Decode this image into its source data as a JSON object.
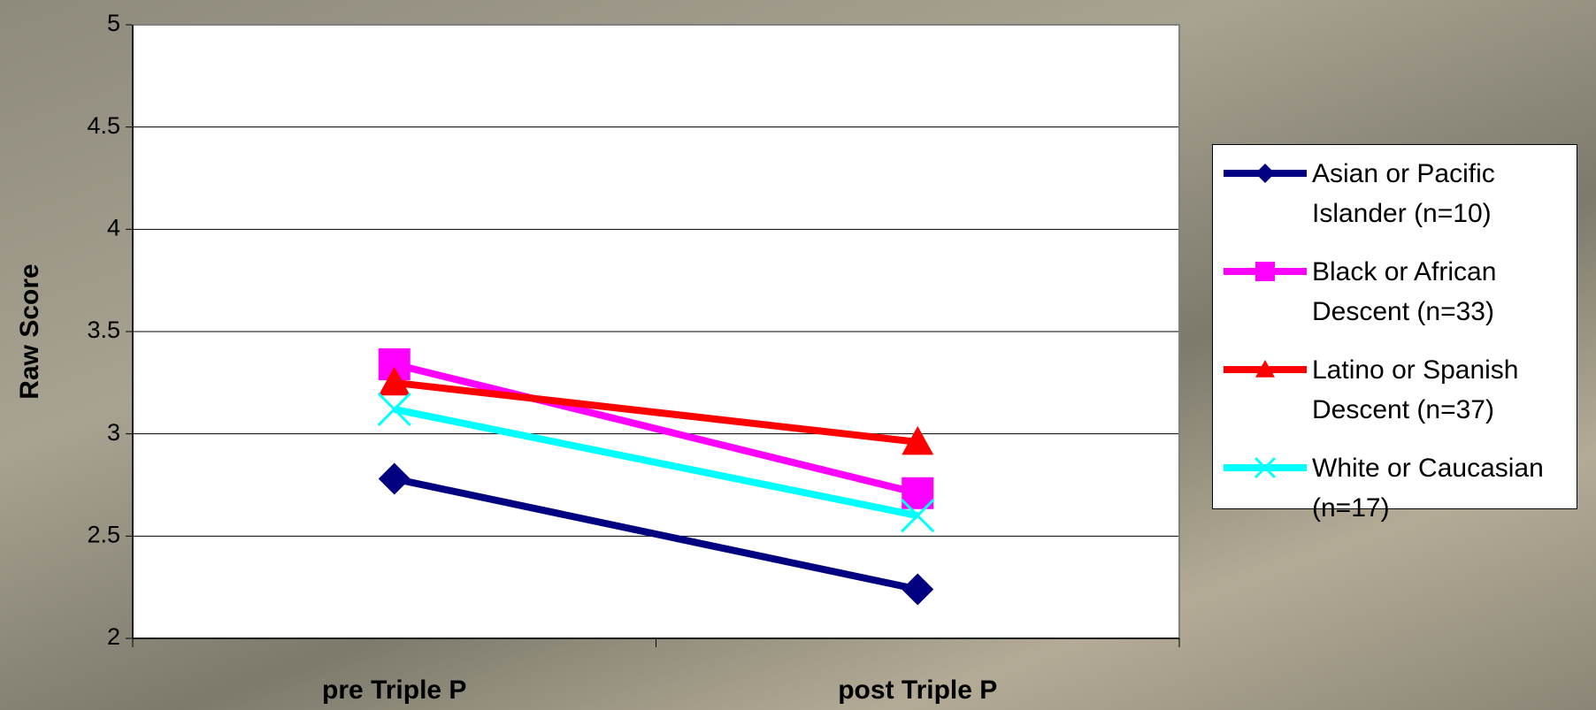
{
  "chart_data": {
    "type": "line",
    "y_label": "Raw Score",
    "categories": [
      "pre Triple P",
      "post Triple P"
    ],
    "series": [
      {
        "name": "Asian or Pacific Islander (n=10)",
        "color": "#000080",
        "marker": "diamond",
        "values": [
          2.78,
          2.24
        ]
      },
      {
        "name": "Black or African Descent (n=33)",
        "color": "#ff00ff",
        "marker": "square",
        "values": [
          3.34,
          2.71
        ]
      },
      {
        "name": "Latino or Spanish Descent (n=37)",
        "color": "#ff0000",
        "marker": "triangle",
        "values": [
          3.25,
          2.96
        ]
      },
      {
        "name": "White or Caucasian (n=17)",
        "color": "#00ffff",
        "marker": "x",
        "values": [
          3.12,
          2.6
        ]
      }
    ],
    "ylim": [
      2,
      5
    ],
    "yticks": [
      2,
      2.5,
      3,
      3.5,
      4,
      4.5,
      5
    ],
    "grid": true
  }
}
